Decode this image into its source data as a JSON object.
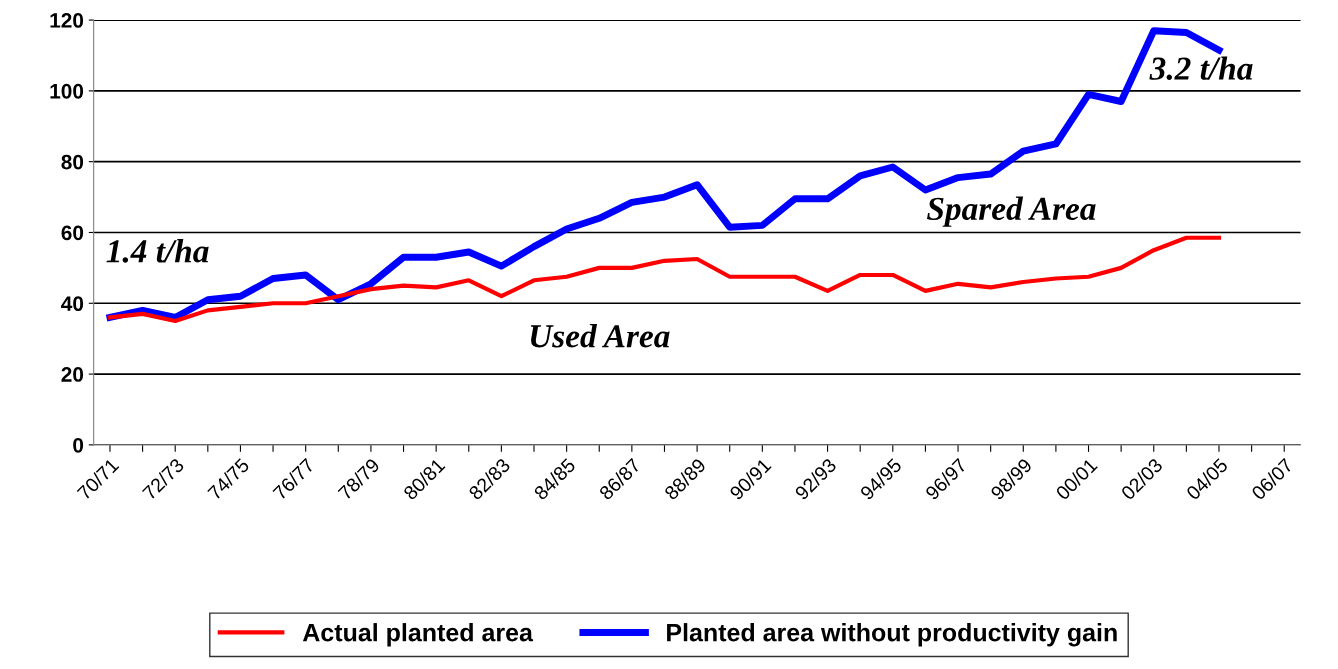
{
  "chart_data": {
    "type": "line",
    "categories": [
      "70/71",
      null,
      "72/73",
      null,
      "74/75",
      null,
      "76/77",
      null,
      "78/79",
      null,
      "80/81",
      null,
      "82/83",
      null,
      "84/85",
      null,
      "86/87",
      null,
      "88/89",
      null,
      "90/91",
      null,
      "92/93",
      null,
      "94/95",
      null,
      "96/97",
      null,
      "98/99",
      null,
      "00/01",
      null,
      "02/03",
      null,
      "04/05",
      null,
      "06/07"
    ],
    "series": [
      {
        "name": "Actual planted area",
        "color": "#ff0000",
        "values": [
          36,
          37,
          35,
          38,
          39,
          40,
          40,
          42,
          44,
          45,
          44.5,
          46.5,
          42,
          46.5,
          47.5,
          50,
          50,
          52,
          52.5,
          47.5,
          47.5,
          47.5,
          43.5,
          48,
          48,
          43.5,
          45.5,
          44.5,
          46,
          47,
          47.5,
          50,
          55,
          58.5,
          58.5,
          null,
          null
        ]
      },
      {
        "name": "Planted area without productivity gain",
        "color": "#0000ff",
        "values": [
          36,
          38,
          36,
          41,
          42,
          47,
          48,
          41,
          45.5,
          53,
          53,
          54.5,
          50.5,
          56,
          61,
          64,
          68.5,
          70,
          73.5,
          61.5,
          62,
          69.5,
          69.5,
          76,
          78.5,
          72,
          75.5,
          76.5,
          83,
          85,
          99,
          97,
          117,
          116.5,
          111.5,
          null,
          null
        ]
      }
    ],
    "ylim": [
      0,
      120
    ],
    "yticks": [
      0,
      20,
      40,
      60,
      80,
      100,
      120
    ],
    "grid": "y",
    "legend": "bottom",
    "marker": "none",
    "line_style": "solid",
    "annotations": [
      "1.4 t/ha",
      "3.2 t/ha",
      "Spared Area",
      "Used Area"
    ]
  }
}
